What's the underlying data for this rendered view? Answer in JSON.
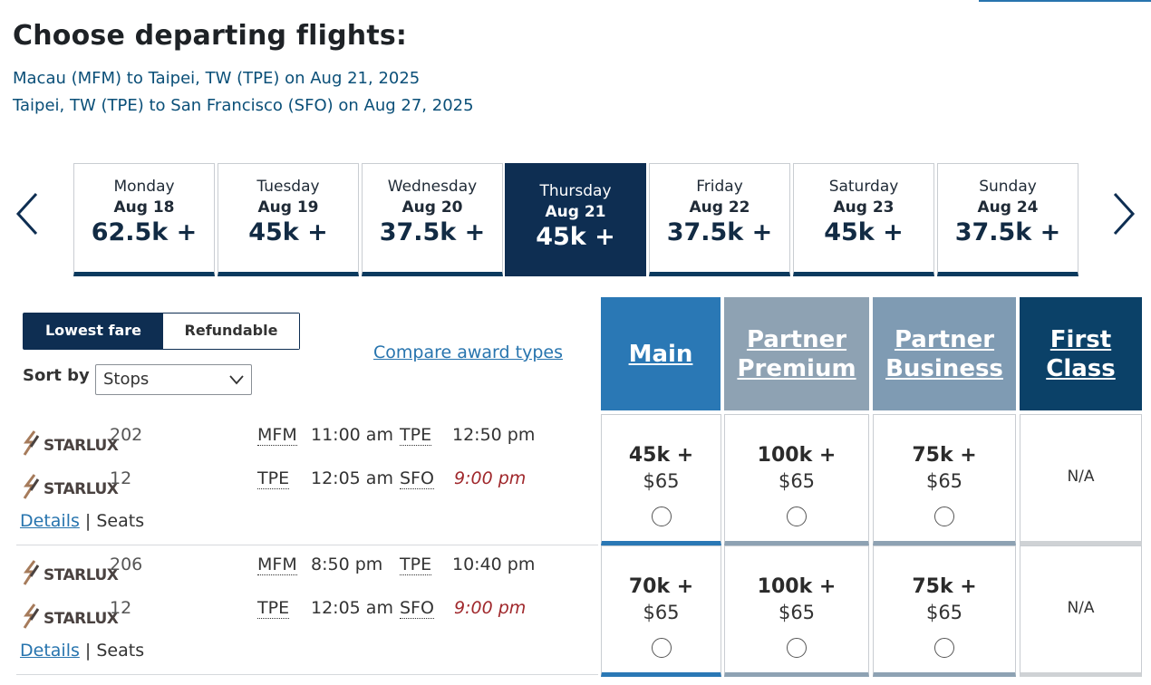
{
  "page_title": "Choose departing flights:",
  "routes": [
    "Macau (MFM) to Taipei, TW (TPE) on Aug 21, 2025",
    "Taipei, TW (TPE) to San Francisco (SFO) on Aug 27, 2025"
  ],
  "date_tabs": [
    {
      "dow": "Monday",
      "date": "Aug 18",
      "points": "62.5k +"
    },
    {
      "dow": "Tuesday",
      "date": "Aug 19",
      "points": "45k +"
    },
    {
      "dow": "Wednesday",
      "date": "Aug 20",
      "points": "37.5k +"
    },
    {
      "dow": "Thursday",
      "date": "Aug 21",
      "points": "45k +"
    },
    {
      "dow": "Friday",
      "date": "Aug 22",
      "points": "37.5k +"
    },
    {
      "dow": "Saturday",
      "date": "Aug 23",
      "points": "45k +"
    },
    {
      "dow": "Sunday",
      "date": "Aug 24",
      "points": "37.5k +"
    }
  ],
  "fare_toggle": {
    "lowest": "Lowest fare",
    "refundable": "Refundable"
  },
  "sort": {
    "label": "Sort by",
    "value": "Stops"
  },
  "compare_link": "Compare award types",
  "cabins": {
    "main": "Main",
    "partner_premium_1": "Partner",
    "partner_premium_2": "Premium",
    "partner_business_1": "Partner",
    "partner_business_2": "Business",
    "first_1": "First",
    "first_2": "Class"
  },
  "colors": {
    "main": "#2a78b5",
    "partner_premium": "#8ea2b3",
    "partner_business": "#7f9bb3",
    "first": "#0b4168",
    "navy": "#0e2e52"
  },
  "airline_logo_text": "STARLUX",
  "flights": [
    {
      "seg1": {
        "num": "202",
        "from": "MFM",
        "dep": "11:00 am",
        "to": "TPE",
        "arr": "12:50 pm"
      },
      "seg2": {
        "num": "12",
        "from": "TPE",
        "dep": "12:05 am",
        "to": "SFO",
        "arr": "9:00 pm"
      },
      "details": "Details",
      "sep": "|",
      "seats": "Seats",
      "fares": {
        "main": {
          "points": "45k +",
          "cash": "$65"
        },
        "partner_premium": {
          "points": "100k +",
          "cash": "$65"
        },
        "partner_business": {
          "points": "75k +",
          "cash": "$65"
        },
        "first": "N/A"
      }
    },
    {
      "seg1": {
        "num": "206",
        "from": "MFM",
        "dep": "8:50 pm",
        "to": "TPE",
        "arr": "10:40 pm"
      },
      "seg2": {
        "num": "12",
        "from": "TPE",
        "dep": "12:05 am",
        "to": "SFO",
        "arr": "9:00 pm"
      },
      "details": "Details",
      "sep": "|",
      "seats": "Seats",
      "fares": {
        "main": {
          "points": "70k +",
          "cash": "$65"
        },
        "partner_premium": {
          "points": "100k +",
          "cash": "$65"
        },
        "partner_business": {
          "points": "75k +",
          "cash": "$65"
        },
        "first": "N/A"
      }
    }
  ]
}
